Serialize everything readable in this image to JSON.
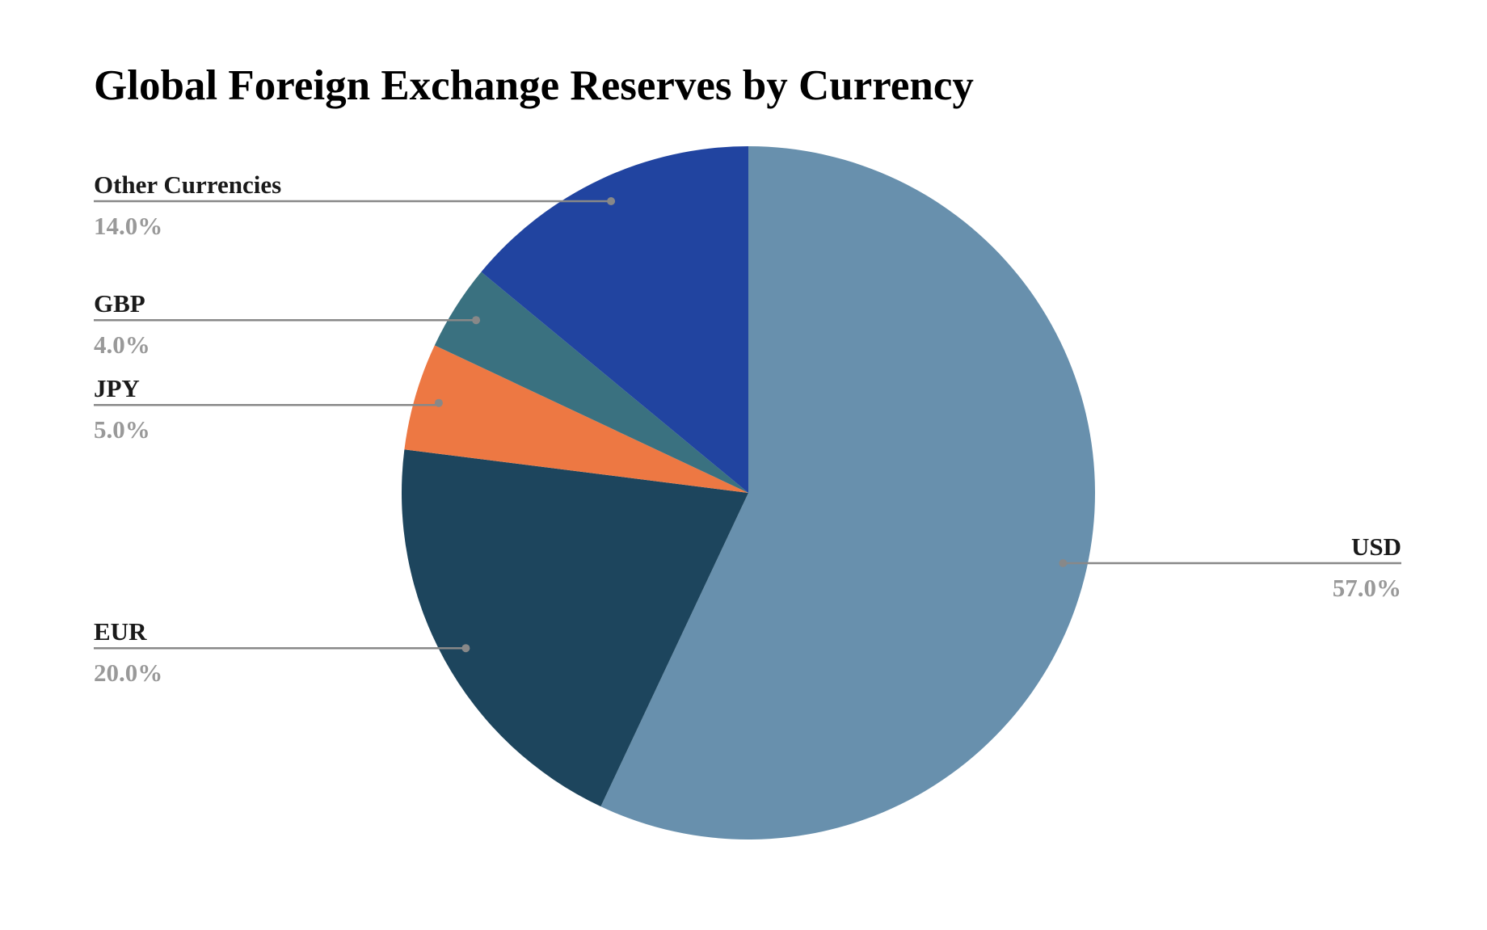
{
  "chart_data": {
    "type": "pie",
    "title": "Global Foreign Exchange Reserves by Currency",
    "slices": [
      {
        "label": "USD",
        "value": 57.0,
        "percent_label": "57.0%",
        "color": "#6890ad"
      },
      {
        "label": "EUR",
        "value": 20.0,
        "percent_label": "20.0%",
        "color": "#1d455d"
      },
      {
        "label": "JPY",
        "value": 5.0,
        "percent_label": "5.0%",
        "color": "#ed7843"
      },
      {
        "label": "GBP",
        "value": 4.0,
        "percent_label": "4.0%",
        "color": "#3a7180"
      },
      {
        "label": "Other Currencies",
        "value": 14.0,
        "percent_label": "14.0%",
        "color": "#2144a0"
      }
    ],
    "label_style": "outside with leader lines",
    "leader_line_color": "#888888",
    "percent_label_color": "#999999"
  }
}
